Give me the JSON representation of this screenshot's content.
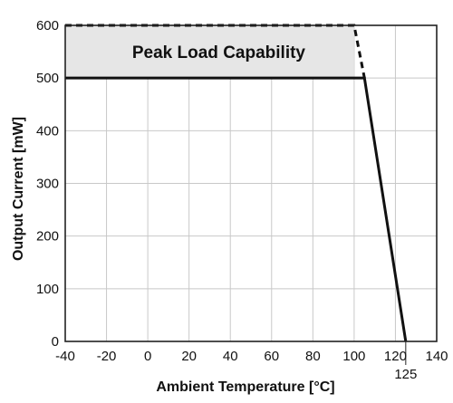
{
  "chart_data": {
    "type": "line",
    "title": "",
    "xlabel": "Ambient Temperature [°C]",
    "ylabel": "Output Current [mW]",
    "xlim": [
      -40,
      140
    ],
    "ylim": [
      0,
      600
    ],
    "x_ticks": [
      -40,
      -20,
      0,
      20,
      40,
      60,
      80,
      100,
      120,
      140
    ],
    "y_ticks": [
      0,
      100,
      200,
      300,
      400,
      500,
      600
    ],
    "extra_x_label": {
      "value": 125,
      "text": "125"
    },
    "grid": true,
    "band": {
      "label": "Peak Load Capability",
      "x": [
        -40,
        100
      ],
      "y": [
        500,
        600
      ],
      "fill": "#e6e6e6"
    },
    "series": [
      {
        "style": "solid",
        "color": "#111111",
        "points": [
          [
            -40,
            500
          ],
          [
            105,
            500
          ],
          [
            125,
            0
          ]
        ]
      },
      {
        "style": "dashed",
        "color": "#111111",
        "points": [
          [
            -40,
            600
          ],
          [
            100,
            600
          ],
          [
            105,
            500
          ]
        ]
      }
    ]
  }
}
